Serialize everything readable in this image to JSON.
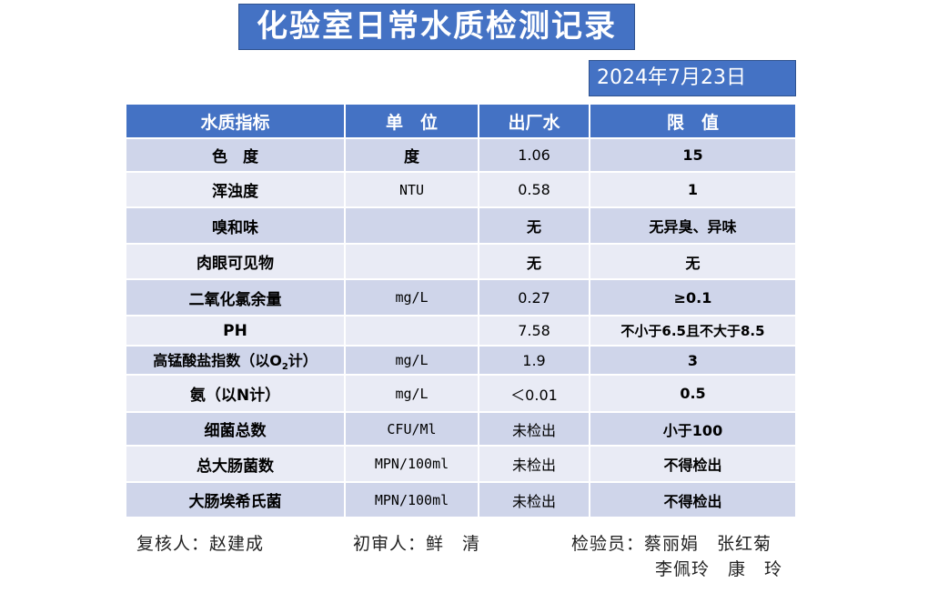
{
  "title": "化验室日常水质检测记录",
  "date": "2024年7月23日",
  "table": {
    "headers": [
      "水质指标",
      "单　位",
      "出厂水",
      "限　值"
    ],
    "rows": [
      {
        "name": "色　度",
        "unit": "度",
        "value": "1.06",
        "limit": "15"
      },
      {
        "name": "浑浊度",
        "unit": "NTU",
        "value": "0.58",
        "limit": "1"
      },
      {
        "name": "嗅和味",
        "unit": "",
        "value": "无",
        "limit": "无异臭、异味"
      },
      {
        "name": "肉眼可见物",
        "unit": "",
        "value": "无",
        "limit": "无"
      },
      {
        "name": "二氧化氯余量",
        "unit": "mg/L",
        "value": "0.27",
        "limit": "≥0.1"
      },
      {
        "name": "PH",
        "unit": "",
        "value": "7.58",
        "limit": "不小于6.5且不大于8.5"
      },
      {
        "name_pre": "高锰酸盐指数（以O",
        "name_sub": "2",
        "name_post": "计）",
        "unit": "mg/L",
        "value": "1.9",
        "limit": "3"
      },
      {
        "name": "氨（以N计）",
        "unit": "mg/L",
        "value": "＜0.01",
        "limit": "0.5"
      },
      {
        "name": "细菌总数",
        "unit": "CFU/Ml",
        "value": "未检出",
        "limit": "小于100"
      },
      {
        "name": "总大肠菌数",
        "unit": "MPN/100ml",
        "value": "未检出",
        "limit": "不得检出"
      },
      {
        "name": "大肠埃希氏菌",
        "unit": "MPN/100ml",
        "value": "未检出",
        "limit": "不得检出"
      }
    ]
  },
  "footer": {
    "reviewer": "复核人：赵建成",
    "first_reviewer": "初审人：鲜　清",
    "inspectors_line1": "检验员：蔡丽娟　张红菊",
    "inspectors_line2": "李佩玲　康　玲"
  },
  "colors": {
    "header_blue": "#4472c4",
    "row_dark": "#cfd5ea",
    "row_light": "#e9ebf5"
  }
}
